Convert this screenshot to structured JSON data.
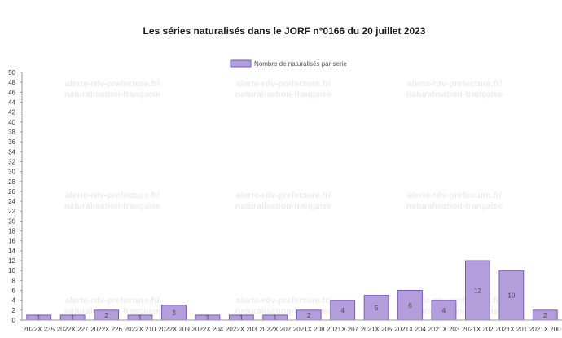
{
  "chart_data": {
    "type": "bar",
    "title": "Les séries naturalisés dans le JORF n°0166 du 20 juillet 2023",
    "xlabel": "",
    "ylabel": "",
    "ylim": [
      0,
      50
    ],
    "ytick_step": 2,
    "grid": false,
    "legend_placement": "top-center",
    "categories": [
      "2022X 235",
      "2022X 227",
      "2022X 226",
      "2022X 210",
      "2022X 209",
      "2022X 204",
      "2022X 203",
      "2022X 202",
      "2021X 208",
      "2021X 207",
      "2021X 205",
      "2021X 204",
      "2021X 203",
      "2021X 202",
      "2021X 201",
      "2021X 200"
    ],
    "series": [
      {
        "name": "Nombre de naturalisés par serie",
        "values": [
          1,
          1,
          2,
          1,
          3,
          1,
          1,
          1,
          2,
          4,
          5,
          6,
          4,
          12,
          10,
          2
        ],
        "color": "#b39ddb",
        "border_color": "#7e57c2"
      }
    ],
    "watermark": {
      "line1": "alerte-rdv-prefecture.fr/",
      "line2": "naturalisation-française"
    }
  }
}
